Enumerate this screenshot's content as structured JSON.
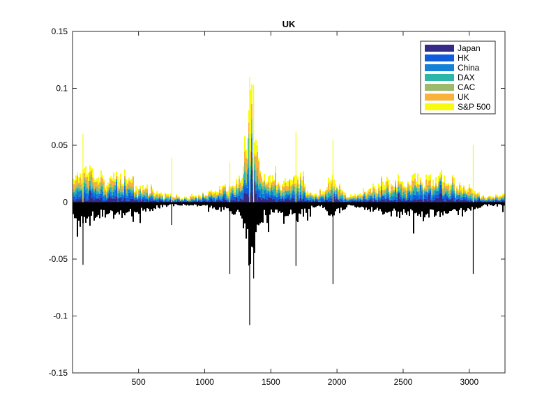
{
  "chart_data": {
    "type": "bar",
    "title": "UK",
    "xlabel": "",
    "ylabel": "",
    "xlim": [
      1,
      3270
    ],
    "ylim": [
      -0.15,
      0.15
    ],
    "xticks": [
      500,
      1000,
      1500,
      2000,
      2500,
      3000
    ],
    "xtick_labels": [
      "500",
      "1000",
      "1500",
      "2000",
      "2500",
      "3000"
    ],
    "yticks": [
      -0.15,
      -0.1,
      -0.05,
      0,
      0.05,
      0.1,
      0.15
    ],
    "ytick_labels": [
      "-0.15",
      "-0.1",
      "-0.05",
      "0",
      "0.05",
      "0.1",
      "0.15"
    ],
    "grid": false,
    "legend_position": "top-right",
    "n_points": 3270,
    "stacked": true,
    "series": [
      {
        "name": "Japan",
        "color": "#352a87"
      },
      {
        "name": "HK",
        "color": "#0f5cdd"
      },
      {
        "name": "China",
        "color": "#1481d6"
      },
      {
        "name": "DAX",
        "color": "#2ab6a9"
      },
      {
        "name": "CAC",
        "color": "#9db96e"
      },
      {
        "name": "UK",
        "color": "#f9b33a"
      },
      {
        "name": "S&P 500",
        "color": "#f9fb0e"
      }
    ],
    "negative_series_color": "#000000",
    "notable_peaks": [
      {
        "x": 1340,
        "positive": 0.11,
        "negative": -0.108
      },
      {
        "x": 1370,
        "positive": 0.103,
        "negative": -0.067
      },
      {
        "x": 1970,
        "positive": 0.055,
        "negative": -0.072
      },
      {
        "x": 1690,
        "positive": 0.062,
        "negative": -0.056
      },
      {
        "x": 3030,
        "positive": 0.05,
        "negative": -0.063
      },
      {
        "x": 80,
        "positive": 0.06,
        "negative": -0.055
      },
      {
        "x": 750,
        "positive": 0.039,
        "negative": -0.02
      },
      {
        "x": 1190,
        "positive": 0.035,
        "negative": -0.063
      }
    ]
  }
}
